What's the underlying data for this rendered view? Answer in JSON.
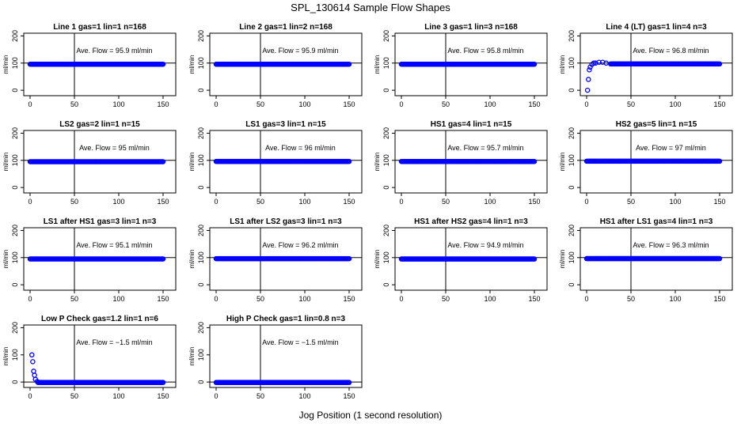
{
  "page": {
    "title": "SPL_130614  Sample Flow Shapes",
    "xlabel": "Jog Position (1 second resolution)"
  },
  "style": {
    "point_color": "#0000ff",
    "line_color": "#000000"
  },
  "chart_data": [
    {
      "type": "scatter",
      "title": "Line 1 gas=1 lin=1 n=168",
      "annotation": "Ave. Flow =  95.9  ml/min",
      "ylabel": "ml/min",
      "xlim": [
        0,
        150
      ],
      "ylim": [
        -20,
        210
      ],
      "x_ticks": [
        0,
        50,
        100,
        150
      ],
      "y_ticks": [
        0,
        100,
        200
      ],
      "vline_x": 50,
      "hline_y": 100,
      "series": [
        {
          "x_range": [
            0,
            150
          ],
          "y": 95.9
        }
      ]
    },
    {
      "type": "scatter",
      "title": "Line 2 gas=1 lin=2 n=168",
      "annotation": "Ave. Flow =  95.9  ml/min",
      "ylabel": "ml/min",
      "xlim": [
        0,
        150
      ],
      "ylim": [
        -20,
        210
      ],
      "x_ticks": [
        0,
        50,
        100,
        150
      ],
      "y_ticks": [
        0,
        100,
        200
      ],
      "vline_x": 50,
      "hline_y": 100,
      "series": [
        {
          "x_range": [
            0,
            150
          ],
          "y": 95.9
        }
      ]
    },
    {
      "type": "scatter",
      "title": "Line 3 gas=1 lin=3 n=168",
      "annotation": "Ave. Flow =  95.8  ml/min",
      "ylabel": "ml/min",
      "xlim": [
        0,
        150
      ],
      "ylim": [
        -20,
        210
      ],
      "x_ticks": [
        0,
        50,
        100,
        150
      ],
      "y_ticks": [
        0,
        100,
        200
      ],
      "vline_x": 50,
      "hline_y": 100,
      "series": [
        {
          "x_range": [
            0,
            150
          ],
          "y": 95.8
        }
      ]
    },
    {
      "type": "scatter",
      "title": "Line 4 (LT) gas=1 lin=4 n=3",
      "annotation": "Ave. Flow =  96.8  ml/min",
      "ylabel": "ml/min",
      "xlim": [
        0,
        150
      ],
      "ylim": [
        -20,
        210
      ],
      "x_ticks": [
        0,
        50,
        100,
        150
      ],
      "y_ticks": [
        0,
        100,
        200
      ],
      "vline_x": 50,
      "hline_y": 100,
      "series": [
        {
          "x_range": [
            0,
            150
          ],
          "y": 96.8,
          "startup": [
            [
              1,
              0
            ],
            [
              2,
              40
            ],
            [
              3,
              75
            ],
            [
              4,
              85
            ],
            [
              6,
              95
            ],
            [
              8,
              100
            ],
            [
              10,
              100
            ],
            [
              14,
              103
            ],
            [
              18,
              103
            ],
            [
              22,
              100
            ],
            [
              27,
              97
            ]
          ]
        }
      ]
    },
    {
      "type": "scatter",
      "title": "LS2 gas=2 lin=1 n=15",
      "annotation": "Ave. Flow =  95  ml/min",
      "ylabel": "ml/min",
      "xlim": [
        0,
        150
      ],
      "ylim": [
        -20,
        210
      ],
      "x_ticks": [
        0,
        50,
        100,
        150
      ],
      "y_ticks": [
        0,
        100,
        200
      ],
      "vline_x": 50,
      "hline_y": 100,
      "series": [
        {
          "x_range": [
            0,
            150
          ],
          "y": 95
        }
      ]
    },
    {
      "type": "scatter",
      "title": "LS1 gas=3 lin=1 n=15",
      "annotation": "Ave. Flow =  96  ml/min",
      "ylabel": "ml/min",
      "xlim": [
        0,
        150
      ],
      "ylim": [
        -20,
        210
      ],
      "x_ticks": [
        0,
        50,
        100,
        150
      ],
      "y_ticks": [
        0,
        100,
        200
      ],
      "vline_x": 50,
      "hline_y": 100,
      "series": [
        {
          "x_range": [
            0,
            150
          ],
          "y": 96
        }
      ]
    },
    {
      "type": "scatter",
      "title": "HS1 gas=4 lin=1 n=15",
      "annotation": "Ave. Flow =  95.7  ml/min",
      "ylabel": "ml/min",
      "xlim": [
        0,
        150
      ],
      "ylim": [
        -20,
        210
      ],
      "x_ticks": [
        0,
        50,
        100,
        150
      ],
      "y_ticks": [
        0,
        100,
        200
      ],
      "vline_x": 50,
      "hline_y": 100,
      "series": [
        {
          "x_range": [
            0,
            150
          ],
          "y": 95.7
        }
      ]
    },
    {
      "type": "scatter",
      "title": "HS2 gas=5 lin=1 n=15",
      "annotation": "Ave. Flow =  97  ml/min",
      "ylabel": "ml/min",
      "xlim": [
        0,
        150
      ],
      "ylim": [
        -20,
        210
      ],
      "x_ticks": [
        0,
        50,
        100,
        150
      ],
      "y_ticks": [
        0,
        100,
        200
      ],
      "vline_x": 50,
      "hline_y": 100,
      "series": [
        {
          "x_range": [
            0,
            150
          ],
          "y": 97
        }
      ]
    },
    {
      "type": "scatter",
      "title": "LS1 after HS1 gas=3 lin=1 n=3",
      "annotation": "Ave. Flow =  95.1  ml/min",
      "ylabel": "ml/min",
      "xlim": [
        0,
        150
      ],
      "ylim": [
        -20,
        210
      ],
      "x_ticks": [
        0,
        50,
        100,
        150
      ],
      "y_ticks": [
        0,
        100,
        200
      ],
      "vline_x": 50,
      "hline_y": 100,
      "series": [
        {
          "x_range": [
            0,
            150
          ],
          "y": 95.1
        }
      ]
    },
    {
      "type": "scatter",
      "title": "LS1 after LS2 gas=3 lin=1 n=3",
      "annotation": "Ave. Flow =  96.2  ml/min",
      "ylabel": "ml/min",
      "xlim": [
        0,
        150
      ],
      "ylim": [
        -20,
        210
      ],
      "x_ticks": [
        0,
        50,
        100,
        150
      ],
      "y_ticks": [
        0,
        100,
        200
      ],
      "vline_x": 50,
      "hline_y": 100,
      "series": [
        {
          "x_range": [
            0,
            150
          ],
          "y": 96.2
        }
      ]
    },
    {
      "type": "scatter",
      "title": "HS1 after HS2 gas=4 lin=1 n=3",
      "annotation": "Ave. Flow =  94.9  ml/min",
      "ylabel": "ml/min",
      "xlim": [
        0,
        150
      ],
      "ylim": [
        -20,
        210
      ],
      "x_ticks": [
        0,
        50,
        100,
        150
      ],
      "y_ticks": [
        0,
        100,
        200
      ],
      "vline_x": 50,
      "hline_y": 100,
      "series": [
        {
          "x_range": [
            0,
            150
          ],
          "y": 94.9
        }
      ]
    },
    {
      "type": "scatter",
      "title": "HS1 after LS1 gas=4 lin=1 n=3",
      "annotation": "Ave. Flow =  96.3  ml/min",
      "ylabel": "ml/min",
      "xlim": [
        0,
        150
      ],
      "ylim": [
        -20,
        210
      ],
      "x_ticks": [
        0,
        50,
        100,
        150
      ],
      "y_ticks": [
        0,
        100,
        200
      ],
      "vline_x": 50,
      "hline_y": 100,
      "series": [
        {
          "x_range": [
            0,
            150
          ],
          "y": 96.3
        }
      ]
    },
    {
      "type": "scatter",
      "title": "Low P Check gas=1.2 lin=1 n=6",
      "annotation": "Ave. Flow =  −1.5  ml/min",
      "ylabel": "ml/min",
      "xlim": [
        0,
        150
      ],
      "ylim": [
        -20,
        210
      ],
      "x_ticks": [
        0,
        50,
        100,
        150
      ],
      "y_ticks": [
        0,
        100,
        200
      ],
      "vline_x": 50,
      "hline_y": 0,
      "series": [
        {
          "x_range": [
            0,
            150
          ],
          "y": -1.5,
          "startup": [
            [
              2,
              100
            ],
            [
              3,
              75
            ],
            [
              4,
              40
            ],
            [
              5,
              25
            ],
            [
              6,
              10
            ],
            [
              8,
              2
            ]
          ]
        }
      ]
    },
    {
      "type": "scatter",
      "title": "High P Check gas=1 lin=0.8 n=3",
      "annotation": "Ave. Flow =  −1.5  ml/min",
      "ylabel": "ml/min",
      "xlim": [
        0,
        150
      ],
      "ylim": [
        -20,
        210
      ],
      "x_ticks": [
        0,
        50,
        100,
        150
      ],
      "y_ticks": [
        0,
        100,
        200
      ],
      "vline_x": 50,
      "hline_y": 0,
      "series": [
        {
          "x_range": [
            0,
            150
          ],
          "y": -1.5
        }
      ]
    }
  ]
}
